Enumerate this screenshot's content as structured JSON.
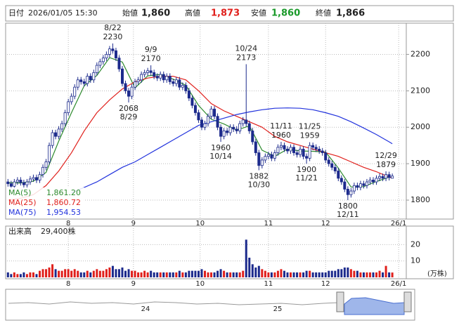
{
  "header": [
    {
      "label": "日付",
      "value": "2026/01/05 15:30",
      "color": "#222222"
    },
    {
      "label": "始値",
      "value": "1,860",
      "color": "#222222"
    },
    {
      "label": "高値",
      "value": "1,873",
      "color": "#e0201c"
    },
    {
      "label": "安値",
      "value": "1,860",
      "color": "#1a9a2a"
    },
    {
      "label": "終値",
      "value": "1,866",
      "color": "#222222"
    }
  ],
  "chart_data": {
    "type": "candlestick",
    "xlim": [
      -0.29,
      125.4
    ],
    "xticks": [
      {
        "value": 19,
        "label": "8"
      },
      {
        "value": 39.5,
        "label": "9"
      },
      {
        "value": 60.5,
        "label": "10"
      },
      {
        "value": 82,
        "label": "11"
      },
      {
        "value": 100,
        "label": "12"
      },
      {
        "value": 123,
        "label": "26/1"
      }
    ],
    "ylim": [
      1748,
      2276
    ],
    "yticks": [
      1800,
      1900,
      2000,
      2100,
      2200
    ],
    "grid": true,
    "up_color": "#ffffff",
    "down_color": "#1c2a8c",
    "edge_color": "#1c2a8c",
    "open": [
      1850,
      1845,
      1838,
      1850,
      1855,
      1848,
      1842,
      1850,
      1858,
      1862,
      1855,
      1870,
      1890,
      1905,
      1950,
      1985,
      1975,
      1995,
      2010,
      2040,
      2070,
      2085,
      2110,
      2130,
      2125,
      2120,
      2140,
      2130,
      2150,
      2170,
      2180,
      2190,
      2200,
      2215,
      2210,
      2190,
      2160,
      2120,
      2100,
      2085,
      2110,
      2125,
      2130,
      2145,
      2150,
      2155,
      2150,
      2140,
      2135,
      2145,
      2130,
      2140,
      2125,
      2120,
      2130,
      2110,
      2115,
      2100,
      2080,
      2060,
      2040,
      2020,
      2000,
      2010,
      2030,
      2050,
      2030,
      2000,
      1975,
      1990,
      1985,
      2000,
      1995,
      1990,
      2010,
      2020,
      2010,
      1990,
      1960,
      1930,
      1895,
      1910,
      1920,
      1925,
      1915,
      1930,
      1945,
      1950,
      1940,
      1935,
      1945,
      1930,
      1925,
      1940,
      1920,
      1915,
      1950,
      1945,
      1940,
      1935,
      1930,
      1910,
      1900,
      1890,
      1880,
      1860,
      1850,
      1830,
      1815,
      1825,
      1840,
      1835,
      1845,
      1840,
      1850,
      1855,
      1850,
      1860,
      1865,
      1860,
      1870,
      1860
    ],
    "high": [
      1858,
      1853,
      1858,
      1863,
      1863,
      1856,
      1858,
      1866,
      1870,
      1870,
      1878,
      1898,
      1913,
      1958,
      1993,
      1993,
      2003,
      2018,
      2048,
      2078,
      2093,
      2118,
      2138,
      2138,
      2133,
      2148,
      2148,
      2158,
      2178,
      2188,
      2198,
      2208,
      2223,
      2230,
      2218,
      2198,
      2168,
      2128,
      2108,
      2118,
      2133,
      2138,
      2153,
      2158,
      2163,
      2170,
      2158,
      2148,
      2153,
      2153,
      2148,
      2148,
      2133,
      2138,
      2138,
      2123,
      2123,
      2108,
      2088,
      2068,
      2048,
      2028,
      2018,
      2038,
      2058,
      2058,
      2038,
      2008,
      1998,
      1998,
      2008,
      2008,
      2003,
      2018,
      2028,
      2173,
      2018,
      1998,
      1968,
      1938,
      1918,
      1928,
      1933,
      1933,
      1938,
      1953,
      1960,
      1958,
      1948,
      1953,
      1953,
      1938,
      1948,
      1948,
      1928,
      1959,
      1958,
      1953,
      1948,
      1943,
      1938,
      1918,
      1908,
      1898,
      1888,
      1868,
      1858,
      1838,
      1833,
      1848,
      1848,
      1853,
      1853,
      1858,
      1863,
      1863,
      1868,
      1873,
      1873,
      1879,
      1878,
      1873
    ],
    "low": [
      1837,
      1830,
      1830,
      1842,
      1840,
      1834,
      1834,
      1842,
      1850,
      1847,
      1847,
      1862,
      1882,
      1897,
      1942,
      1967,
      1967,
      1987,
      2002,
      2032,
      2062,
      2077,
      2102,
      2117,
      2112,
      2112,
      2122,
      2122,
      2142,
      2162,
      2172,
      2182,
      2192,
      2202,
      2182,
      2152,
      2112,
      2092,
      2068,
      2077,
      2102,
      2117,
      2122,
      2137,
      2142,
      2142,
      2132,
      2127,
      2127,
      2122,
      2122,
      2117,
      2112,
      2112,
      2102,
      2102,
      2092,
      2072,
      2052,
      2032,
      2012,
      1992,
      1992,
      2002,
      2022,
      2022,
      1992,
      1960,
      1967,
      1977,
      1977,
      1987,
      1982,
      1982,
      2002,
      2002,
      1982,
      1952,
      1922,
      1882,
      1887,
      1902,
      1912,
      1907,
      1907,
      1922,
      1937,
      1932,
      1927,
      1927,
      1922,
      1917,
      1917,
      1912,
      1900,
      1907,
      1937,
      1932,
      1927,
      1922,
      1902,
      1892,
      1882,
      1872,
      1852,
      1842,
      1822,
      1800,
      1807,
      1817,
      1827,
      1827,
      1832,
      1832,
      1842,
      1842,
      1842,
      1852,
      1852,
      1852,
      1854,
      1860
    ],
    "close": [
      1845,
      1838,
      1850,
      1855,
      1848,
      1842,
      1850,
      1858,
      1862,
      1855,
      1870,
      1890,
      1905,
      1950,
      1985,
      1975,
      1995,
      2010,
      2040,
      2070,
      2085,
      2110,
      2130,
      2125,
      2120,
      2140,
      2130,
      2150,
      2170,
      2180,
      2190,
      2200,
      2215,
      2210,
      2190,
      2160,
      2120,
      2100,
      2085,
      2110,
      2125,
      2130,
      2145,
      2150,
      2155,
      2150,
      2140,
      2135,
      2145,
      2130,
      2140,
      2125,
      2120,
      2130,
      2110,
      2115,
      2100,
      2080,
      2060,
      2040,
      2020,
      2000,
      2010,
      2030,
      2050,
      2030,
      2000,
      1975,
      1990,
      1985,
      2000,
      1995,
      1990,
      2010,
      2020,
      2010,
      1990,
      1960,
      1930,
      1895,
      1910,
      1920,
      1925,
      1915,
      1930,
      1945,
      1950,
      1940,
      1935,
      1945,
      1930,
      1925,
      1940,
      1920,
      1915,
      1950,
      1945,
      1940,
      1935,
      1930,
      1910,
      1900,
      1890,
      1880,
      1860,
      1850,
      1830,
      1815,
      1825,
      1840,
      1835,
      1845,
      1840,
      1850,
      1855,
      1850,
      1860,
      1865,
      1860,
      1870,
      1862,
      1866
    ],
    "ma_x": [
      0,
      4,
      8,
      12,
      16,
      20,
      24,
      28,
      32,
      36,
      40,
      44,
      48,
      52,
      56,
      60,
      64,
      68,
      72,
      76,
      80,
      84,
      88,
      92,
      96,
      100,
      104,
      108,
      112,
      116,
      120,
      121
    ],
    "series": [
      {
        "name": "MA(5)",
        "color": "#2e8b2e",
        "last": {
          "value": 1861.2,
          "label": "1,861.20"
        },
        "values": [
          1848,
          1847,
          1852,
          1876,
          1962,
          2040,
          2114,
          2142,
          2191,
          2179,
          2108,
          2141,
          2145,
          2132,
          2115,
          2060,
          2022,
          2009,
          1992,
          2004,
          1937,
          1920,
          1940,
          1935,
          1934,
          1932,
          1888,
          1836,
          1837,
          1851,
          1863,
          1861.2
        ]
      },
      {
        "name": "MA(25)",
        "color": "#e0201c",
        "last": {
          "value": 1860.72,
          "label": "1,860.72"
        },
        "values": [
          1800,
          1805,
          1815,
          1840,
          1880,
          1930,
          1990,
          2040,
          2075,
          2105,
          2125,
          2135,
          2140,
          2140,
          2130,
          2100,
          2065,
          2045,
          2030,
          2015,
          2000,
          1975,
          1960,
          1950,
          1940,
          1930,
          1920,
          1905,
          1890,
          1878,
          1863,
          1860.72
        ]
      },
      {
        "name": "MA(75)",
        "color": "#2233dd",
        "last": {
          "value": 1954.53,
          "label": "1,954.53"
        },
        "values": [
          null,
          null,
          null,
          null,
          null,
          1820,
          1835,
          1850,
          1870,
          1890,
          1905,
          1925,
          1945,
          1965,
          1985,
          2005,
          2015,
          2025,
          2035,
          2042,
          2048,
          2052,
          2053,
          2052,
          2048,
          2040,
          2030,
          2015,
          1998,
          1980,
          1960,
          1954.53
        ]
      }
    ],
    "annotations": [
      {
        "date": "8/22",
        "value": 2230,
        "x": 33,
        "side": "above"
      },
      {
        "date": "8/29",
        "value": 2068,
        "x": 38,
        "side": "below"
      },
      {
        "date": "9/9",
        "value": 2170,
        "x": 45,
        "side": "above"
      },
      {
        "date": "10/14",
        "value": 1960,
        "x": 67,
        "side": "below"
      },
      {
        "date": "10/24",
        "value": 2173,
        "x": 75,
        "side": "above"
      },
      {
        "date": "10/30",
        "value": 1882,
        "x": 79,
        "side": "below"
      },
      {
        "date": "11/11",
        "value": 1960,
        "x": 86,
        "side": "above"
      },
      {
        "date": "11/21",
        "value": 1900,
        "x": 94,
        "side": "below"
      },
      {
        "date": "11/25",
        "value": 1959,
        "x": 95,
        "side": "above"
      },
      {
        "date": "12/11",
        "value": 1800,
        "x": 107,
        "side": "below"
      },
      {
        "date": "12/29",
        "value": 1879,
        "x": 119,
        "side": "above"
      }
    ],
    "volume": {
      "title": "出来高",
      "latest": "29,400株",
      "unit": "(万株)",
      "up_color": "#e0201c",
      "down_color": "#1c2a8c",
      "ylim": [
        0,
        30
      ],
      "yticks": [
        10,
        20
      ],
      "values": [
        3,
        2,
        3,
        2,
        2,
        3,
        2,
        3,
        3,
        2,
        4,
        5,
        5,
        6,
        8,
        5,
        4,
        4,
        5,
        5,
        4,
        5,
        4,
        3,
        3,
        4,
        3,
        4,
        5,
        4,
        4,
        5,
        6,
        7,
        5,
        5,
        6,
        4,
        5,
        4,
        4,
        3,
        3,
        4,
        3,
        4,
        3,
        3,
        3,
        3,
        3,
        3,
        3,
        3,
        4,
        3,
        3,
        4,
        4,
        4,
        4,
        5,
        4,
        3,
        3,
        3,
        4,
        5,
        4,
        3,
        3,
        3,
        3,
        3,
        4,
        23,
        12,
        8,
        6,
        7,
        5,
        4,
        3,
        3,
        3,
        4,
        5,
        4,
        3,
        3,
        3,
        3,
        3,
        3,
        4,
        4,
        3,
        3,
        3,
        3,
        3,
        4,
        4,
        4,
        5,
        5,
        6,
        6,
        5,
        4,
        4,
        3,
        3,
        3,
        3,
        3,
        3,
        4,
        3,
        7,
        3,
        2.94
      ]
    }
  },
  "navigator": {
    "labels": [
      "24",
      "25"
    ]
  }
}
